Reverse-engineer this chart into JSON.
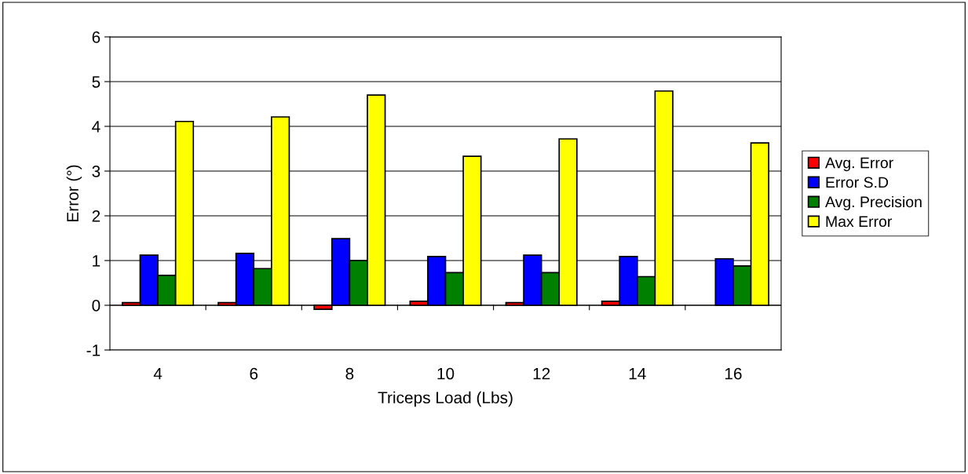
{
  "chart_data": {
    "type": "bar",
    "xlabel": "Triceps Load (Lbs)",
    "ylabel": "Error (°)",
    "categories": [
      "4",
      "6",
      "8",
      "10",
      "12",
      "14",
      "16"
    ],
    "series": [
      {
        "name": "Avg. Error",
        "color": "#ff0000",
        "values": [
          0.06,
          0.06,
          -0.09,
          0.09,
          0.06,
          0.09,
          null
        ]
      },
      {
        "name": "Error S.D",
        "color": "#0000ff",
        "values": [
          1.12,
          1.16,
          1.49,
          1.09,
          1.12,
          1.09,
          1.04
        ]
      },
      {
        "name": "Avg. Precision",
        "color": "#008000",
        "values": [
          0.67,
          0.82,
          1.0,
          0.73,
          0.73,
          0.64,
          0.88
        ]
      },
      {
        "name": "Max Error",
        "color": "#ffff00",
        "values": [
          4.11,
          4.21,
          4.7,
          3.33,
          3.72,
          4.79,
          3.63
        ]
      }
    ],
    "ylim": [
      -1,
      6
    ],
    "yticks": [
      -1,
      0,
      1,
      2,
      3,
      4,
      5,
      6
    ],
    "grid": "y",
    "legend": "right"
  }
}
